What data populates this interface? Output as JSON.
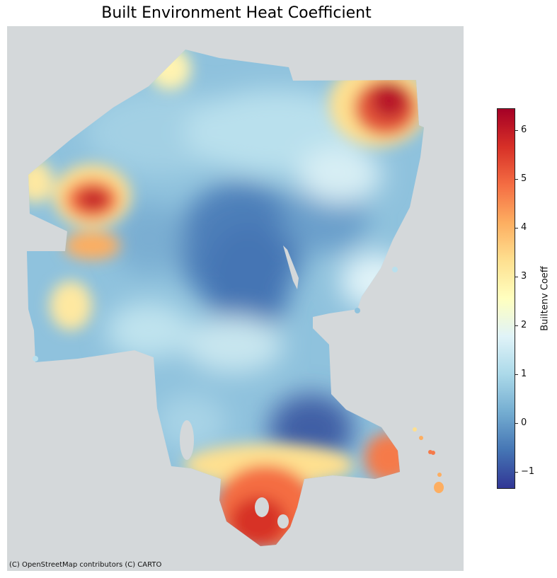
{
  "title": "Built Environment Heat Coefficient",
  "attribution": "(C) OpenStreetMap contributors (C) CARTO",
  "colorbar": {
    "label": "Builtenv Coeff",
    "min": -1.35,
    "max": 6.45,
    "ticks": [
      {
        "value": -1,
        "label": "−1"
      },
      {
        "value": 0,
        "label": "0"
      },
      {
        "value": 1,
        "label": "1"
      },
      {
        "value": 2,
        "label": "2"
      },
      {
        "value": 3,
        "label": "3"
      },
      {
        "value": 4,
        "label": "4"
      },
      {
        "value": 5,
        "label": "5"
      },
      {
        "value": 6,
        "label": "6"
      }
    ],
    "colormap": "RdYlBu_r",
    "stops": [
      "#313695",
      "#4575b4",
      "#74add1",
      "#abd9e9",
      "#e0f3f8",
      "#ffffbf",
      "#fee090",
      "#fdae61",
      "#f46d43",
      "#d73027",
      "#a50026"
    ]
  },
  "map": {
    "background_color": "#d4d8da",
    "hotspots": [
      {
        "name": "northeast",
        "value": 6.2
      },
      {
        "name": "west",
        "value": 5.8
      },
      {
        "name": "south-peninsula",
        "value": 5.2
      },
      {
        "name": "southeast",
        "value": 4.5
      },
      {
        "name": "far-east-islands",
        "value": 4.0
      },
      {
        "name": "southwest",
        "value": 3.2
      }
    ],
    "coldspots": [
      {
        "name": "central",
        "value": -1.2
      },
      {
        "name": "south-central",
        "value": -1.3
      }
    ]
  }
}
